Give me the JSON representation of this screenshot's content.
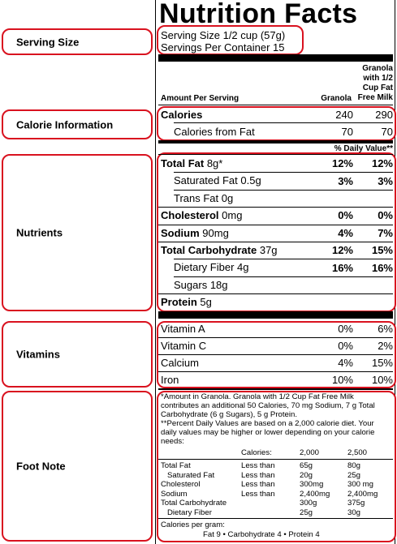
{
  "title": "Nutrition Facts",
  "annotations": [
    "Serving Size",
    "Calorie Information",
    "Nutrients",
    "Vitamins",
    "Foot Note"
  ],
  "serving": {
    "size": "Serving Size 1/2 cup (57g)",
    "per_container": "Servings Per Container 15"
  },
  "header": {
    "amount_per_serving": "Amount Per Serving",
    "col1": "Granola",
    "col2": "Granola with 1/2 Cup Fat Free Milk"
  },
  "calories": [
    {
      "name": "Calories",
      "col1": "240",
      "col2": "290",
      "level": 1
    },
    {
      "name": "Calories from Fat",
      "col1": "70",
      "col2": "70",
      "level": 2
    }
  ],
  "daily_value_header": "% Daily Value**",
  "nutrients": [
    {
      "name": "Total Fat",
      "amount": "8g*",
      "col1": "12%",
      "col2": "12%",
      "level": 1
    },
    {
      "name": "Saturated Fat",
      "amount": "0.5g",
      "col1": "3%",
      "col2": "3%",
      "level": 2
    },
    {
      "name": "Trans Fat",
      "amount": "0g",
      "level": 2
    },
    {
      "name": "Cholesterol",
      "amount": "0mg",
      "col1": "0%",
      "col2": "0%",
      "level": 1
    },
    {
      "name": "Sodium",
      "amount": "90mg",
      "col1": "4%",
      "col2": "7%",
      "level": 1
    },
    {
      "name": "Total Carbohydrate",
      "amount": "37g",
      "col1": "12%",
      "col2": "15%",
      "level": 1
    },
    {
      "name": "Dietary Fiber",
      "amount": "4g",
      "col1": "16%",
      "col2": "16%",
      "level": 2
    },
    {
      "name": "Sugars",
      "amount": "18g",
      "level": 2
    },
    {
      "name": "Protein",
      "amount": "5g",
      "level": 1
    }
  ],
  "vitamins": [
    {
      "name": "Vitamin A",
      "col1": "0%",
      "col2": "6%"
    },
    {
      "name": "Vitamin C",
      "col1": "0%",
      "col2": "2%"
    },
    {
      "name": "Calcium",
      "col1": "4%",
      "col2": "15%"
    },
    {
      "name": "Iron",
      "col1": "10%",
      "col2": "10%"
    }
  ],
  "footnote": {
    "amount_note": "*Amount in Granola. Granola with 1/2 Cup Fat Free Milk contributes an additional 50 Calories, 70 mg Sodium, 7 g Total Carbohydrate (6 g Sugars), 5 g Protein.",
    "daily_note": "**Percent Daily Values are based on a 2,000 calorie diet. Your daily values may be higher or lower depending on your calorie needs:",
    "table_header": {
      "label": "Calories:",
      "c2000": "2,000",
      "c2500": "2,500"
    },
    "table_rows": [
      {
        "name": "Total Fat",
        "limit": "Less than",
        "c2000": "65g",
        "c2500": "80g",
        "level": 1
      },
      {
        "name": "Saturated Fat",
        "limit": "Less than",
        "c2000": "20g",
        "c2500": "25g",
        "level": 2
      },
      {
        "name": "Cholesterol",
        "limit": "Less than",
        "c2000": "300mg",
        "c2500": "300 mg",
        "level": 1
      },
      {
        "name": "Sodium",
        "limit": "Less than",
        "c2000": "2,400mg",
        "c2500": "2,400mg",
        "level": 1
      },
      {
        "name": "Total Carbohydrate",
        "c2000": "300g",
        "c2500": "375g",
        "level": 1
      },
      {
        "name": "Dietary Fiber",
        "c2000": "25g",
        "c2500": "30g",
        "level": 2
      }
    ],
    "per_gram_label": "Calories per gram:",
    "per_gram_values": "Fat 9 • Carbohydrate 4 • Protein 4"
  }
}
